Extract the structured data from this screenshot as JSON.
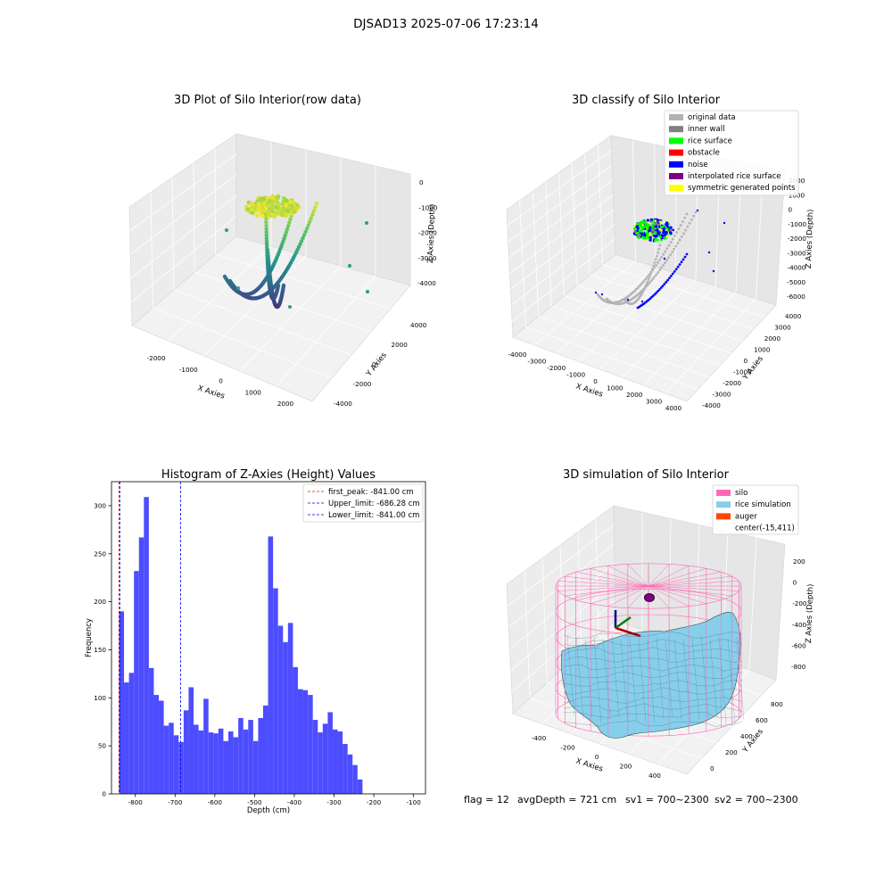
{
  "figure": {
    "suptitle": "DJSAD13 2025-07-06 17:23:14",
    "status": {
      "flag": "flag = 12",
      "avg_depth": "avgDepth = 721 cm",
      "sv1": "sv1 = 700~2300",
      "sv2": "sv2 = 700~2300"
    }
  },
  "colors": {
    "hist_bar": "#4d4dff",
    "first_peak": "#ff0000",
    "upper_limit": "#0000ff",
    "lower_limit": "#0000cc",
    "original_data": "#b3b3b3",
    "inner_wall": "#808080",
    "rice_surface": "#00ff00",
    "obstacle": "#ff0000",
    "noise": "#0000ff",
    "interpolated_rice_surface": "#800080",
    "symmetric_generated_points": "#ffff00",
    "silo": "#ff69b4",
    "rice_simulation": "#87ceeb",
    "auger": "#ff4500"
  },
  "chart_data": [
    {
      "id": "raw",
      "type": "scatter",
      "projection": "3d",
      "title": "3D Plot of Silo Interior(row data)",
      "xlabel": "X Axies",
      "ylabel": "Y Axies",
      "zlabel": "Z Axies (Depth)",
      "x_ticks": [
        -2000,
        -1000,
        0,
        1000,
        2000
      ],
      "y_ticks": [
        -4000,
        -2000,
        0,
        2000,
        4000
      ],
      "z_ticks": [
        0,
        -1000,
        -2000,
        -3000,
        -4000
      ],
      "grid": true
    },
    {
      "id": "classify",
      "type": "scatter",
      "projection": "3d",
      "title": "3D classify of Silo Interior",
      "xlabel": "X Axies",
      "ylabel": "Y Axies",
      "zlabel": "Z Axies (Depth)",
      "x_ticks": [
        -4000,
        -3000,
        -2000,
        -1000,
        0,
        1000,
        2000,
        3000,
        4000
      ],
      "y_ticks": [
        -4000,
        -3000,
        -2000,
        -1000,
        0,
        1000,
        2000,
        3000,
        4000
      ],
      "z_ticks": [
        2000,
        1000,
        0,
        -1000,
        -2000,
        -3000,
        -4000,
        -5000,
        -6000
      ],
      "legend": {
        "position": "upper-right",
        "entries": [
          {
            "label": "original data",
            "color": "#b3b3b3"
          },
          {
            "label": "inner wall",
            "color": "#808080"
          },
          {
            "label": "rice surface",
            "color": "#00ff00"
          },
          {
            "label": "obstacle",
            "color": "#ff0000"
          },
          {
            "label": "noise",
            "color": "#0000ff"
          },
          {
            "label": "interpolated rice surface",
            "color": "#800080"
          },
          {
            "label": "symmetric generated points",
            "color": "#ffff00"
          }
        ]
      },
      "grid": true
    },
    {
      "id": "hist",
      "type": "bar",
      "title": "Histogram of Z-Axies (Height) Values",
      "xlabel": "Depth (cm)",
      "ylabel": "Frequency",
      "xlim": [
        -860,
        -70
      ],
      "ylim": [
        0,
        325
      ],
      "x_ticks": [
        -800,
        -700,
        -600,
        -500,
        -400,
        -300,
        -200,
        -100
      ],
      "y_ticks": [
        0,
        50,
        100,
        150,
        200,
        250,
        300
      ],
      "bin_start": -841,
      "bin_width": 12.5,
      "values": [
        190,
        116,
        126,
        232,
        267,
        309,
        131,
        103,
        97,
        71,
        74,
        61,
        54,
        87,
        111,
        72,
        66,
        99,
        64,
        63,
        68,
        55,
        65,
        59,
        79,
        67,
        77,
        55,
        79,
        92,
        268,
        214,
        175,
        158,
        178,
        132,
        109,
        108,
        103,
        77,
        64,
        73,
        85,
        67,
        65,
        52,
        41,
        30,
        15
      ],
      "lines": [
        {
          "label": "first_peak: -841.00 cm",
          "x": -841,
          "color": "#ff0000"
        },
        {
          "label": "Upper_limit: -686.28 cm",
          "x": -686.28,
          "color": "#0000ff"
        },
        {
          "label": "Lower_limit: -841.00 cm",
          "x": -841,
          "color": "#0000cc"
        }
      ],
      "legend": {
        "position": "upper-right"
      }
    },
    {
      "id": "sim",
      "type": "surface",
      "projection": "3d",
      "title": "3D simulation of Silo Interior",
      "xlabel": "X Axies",
      "ylabel": "Y Axies",
      "zlabel": "Z Axies (Depth)",
      "x_ticks": [
        -400,
        -200,
        0,
        200,
        400
      ],
      "y_ticks": [
        0,
        200,
        400,
        600,
        800
      ],
      "z_ticks": [
        200,
        0,
        -200,
        -400,
        -600,
        -800
      ],
      "legend": {
        "position": "upper-right",
        "entries": [
          {
            "label": "silo",
            "color": "#ff69b4"
          },
          {
            "label": "rice simulation",
            "color": "#87ceeb"
          },
          {
            "label": "auger",
            "color": "#ff4500"
          },
          {
            "label": "center(-15,411)",
            "color": ""
          }
        ]
      },
      "grid": true
    }
  ]
}
